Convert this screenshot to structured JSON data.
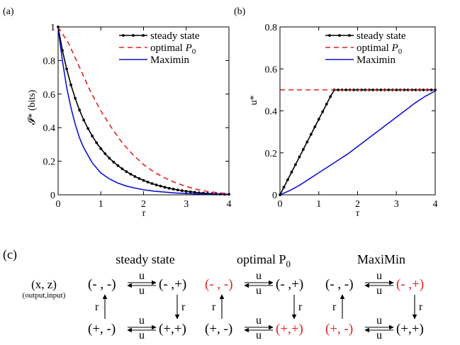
{
  "chart_data": [
    {
      "type": "line",
      "panel_label": "(a)",
      "xlabel": "τ",
      "ylabel": "𝓘* (bits)",
      "xlim": [
        0,
        4
      ],
      "ylim": [
        0,
        1
      ],
      "xticks": [
        "0",
        "1",
        "2",
        "3",
        "4"
      ],
      "yticks": [
        "0",
        "0.2",
        "0.4",
        "0.6",
        "0.8",
        "1"
      ],
      "legend_position": "top-right",
      "series": [
        {
          "name": "steady state",
          "color": "#000000",
          "style": "solid-dots",
          "x": [
            0,
            0.1,
            0.2,
            0.3,
            0.4,
            0.5,
            0.6,
            0.7,
            0.8,
            0.9,
            1.0,
            1.1,
            1.2,
            1.3,
            1.4,
            1.5,
            1.6,
            1.7,
            1.8,
            1.9,
            2.0,
            2.1,
            2.2,
            2.3,
            2.4,
            2.5,
            2.6,
            2.7,
            2.8,
            2.9,
            3.0,
            3.1,
            3.2,
            3.3,
            3.4,
            3.5,
            3.6,
            3.7,
            3.8,
            3.9,
            4.0
          ],
          "y": [
            1.0,
            0.86,
            0.75,
            0.655,
            0.575,
            0.505,
            0.445,
            0.395,
            0.35,
            0.31,
            0.275,
            0.245,
            0.218,
            0.195,
            0.174,
            0.155,
            0.138,
            0.123,
            0.109,
            0.097,
            0.086,
            0.076,
            0.067,
            0.059,
            0.052,
            0.045,
            0.039,
            0.034,
            0.029,
            0.025,
            0.021,
            0.018,
            0.015,
            0.012,
            0.01,
            0.008,
            0.006,
            0.005,
            0.004,
            0.003,
            0.003
          ]
        },
        {
          "name": "optimal P0",
          "color": "#e02020",
          "style": "dashed",
          "x": [
            0,
            0.25,
            0.5,
            0.75,
            1.0,
            1.25,
            1.5,
            1.75,
            2.0,
            2.25,
            2.5,
            2.75,
            3.0,
            3.25,
            3.5,
            3.75,
            4.0
          ],
          "y": [
            1.0,
            0.9,
            0.76,
            0.62,
            0.5,
            0.4,
            0.31,
            0.24,
            0.18,
            0.135,
            0.1,
            0.072,
            0.05,
            0.032,
            0.02,
            0.012,
            0.007
          ]
        },
        {
          "name": "Maximin",
          "color": "#1010d0",
          "style": "solid",
          "x": [
            0,
            0.1,
            0.2,
            0.3,
            0.4,
            0.5,
            0.6,
            0.8,
            1.0,
            1.2,
            1.4,
            1.6,
            1.8,
            2.0,
            2.25,
            2.5,
            2.75,
            3.0,
            3.25,
            3.5,
            3.75,
            4.0
          ],
          "y": [
            0.99,
            0.8,
            0.64,
            0.52,
            0.42,
            0.34,
            0.28,
            0.19,
            0.13,
            0.095,
            0.07,
            0.052,
            0.04,
            0.03,
            0.022,
            0.016,
            0.011,
            0.008,
            0.005,
            0.004,
            0.003,
            0.002
          ]
        }
      ]
    },
    {
      "type": "line",
      "panel_label": "(b)",
      "xlabel": "τ",
      "ylabel": "u*",
      "xlim": [
        0,
        4
      ],
      "ylim": [
        0,
        0.8
      ],
      "xticks": [
        "0",
        "1",
        "2",
        "3",
        "4"
      ],
      "yticks": [
        "0",
        "0.2",
        "0.4",
        "0.6",
        "0.8"
      ],
      "legend_position": "top-right",
      "series": [
        {
          "name": "steady state",
          "color": "#000000",
          "style": "solid-dots",
          "x": [
            0,
            0.1,
            0.2,
            0.3,
            0.4,
            0.5,
            0.6,
            0.7,
            0.8,
            0.9,
            1.0,
            1.1,
            1.2,
            1.3,
            1.4,
            1.5,
            1.6,
            1.7,
            1.8,
            1.9,
            2.0,
            2.1,
            2.2,
            2.3,
            2.4,
            2.5,
            2.6,
            2.7,
            2.8,
            2.9,
            3.0,
            3.1,
            3.2,
            3.3,
            3.4,
            3.5,
            3.6,
            3.7,
            3.8,
            3.9,
            4.0
          ],
          "y": [
            0,
            0.036,
            0.072,
            0.108,
            0.144,
            0.18,
            0.216,
            0.252,
            0.288,
            0.324,
            0.36,
            0.396,
            0.432,
            0.468,
            0.5,
            0.5,
            0.5,
            0.5,
            0.5,
            0.5,
            0.5,
            0.5,
            0.5,
            0.5,
            0.5,
            0.5,
            0.5,
            0.5,
            0.5,
            0.5,
            0.5,
            0.5,
            0.5,
            0.5,
            0.5,
            0.5,
            0.5,
            0.5,
            0.5,
            0.5,
            0.5
          ]
        },
        {
          "name": "optimal P0",
          "color": "#e02020",
          "style": "dashed",
          "x": [
            0,
            4
          ],
          "y": [
            0.5,
            0.5
          ]
        },
        {
          "name": "Maximin",
          "color": "#1010d0",
          "style": "solid",
          "x": [
            0,
            0.25,
            0.5,
            0.75,
            1.0,
            1.25,
            1.5,
            1.75,
            2.0,
            2.25,
            2.5,
            2.75,
            3.0,
            3.25,
            3.5,
            3.75,
            4.0
          ],
          "y": [
            0,
            0.02,
            0.045,
            0.075,
            0.105,
            0.135,
            0.165,
            0.195,
            0.23,
            0.265,
            0.3,
            0.335,
            0.37,
            0.405,
            0.44,
            0.47,
            0.495
          ]
        }
      ]
    }
  ],
  "diagram": {
    "panel_label": "(c)",
    "axes_label": "(x, z)",
    "axes_sublabel": "(output,input)",
    "arrow_u": "u",
    "arrow_r": "r",
    "colors": {
      "normal": "#000000",
      "highlight": "#e02020"
    },
    "schemes": [
      {
        "title": "steady state",
        "subscript": "",
        "states": {
          "tl": "(- , -)",
          "tr": "(- ,+)",
          "bl": "(+, -)",
          "br": "(+,+)"
        },
        "highlight": []
      },
      {
        "title": "optimal P",
        "subscript": "0",
        "states": {
          "tl": "(- , -)",
          "tr": "(- ,+)",
          "bl": "(+, -)",
          "br": "(+,+)"
        },
        "highlight": [
          "tl",
          "br"
        ]
      },
      {
        "title": "MaxiMin",
        "subscript": "",
        "states": {
          "tl": "(- , -)",
          "tr": "(- ,+)",
          "bl": "(+, -)",
          "br": "(+,+)"
        },
        "highlight": [
          "tr",
          "bl"
        ]
      }
    ]
  }
}
